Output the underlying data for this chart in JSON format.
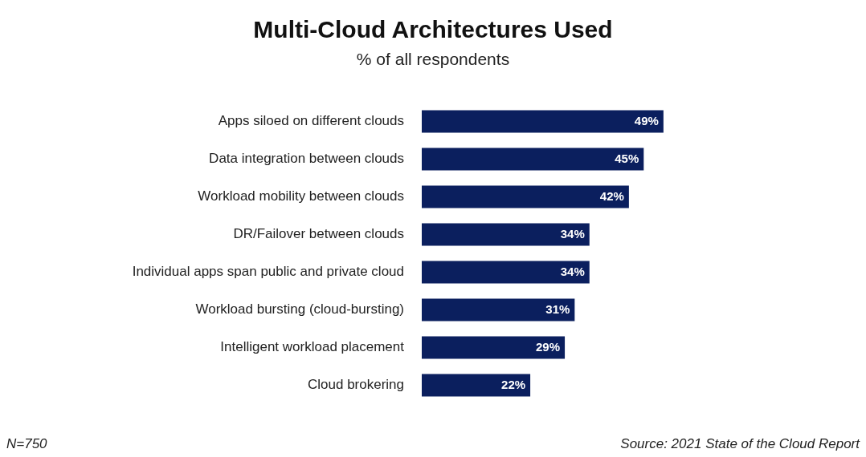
{
  "chart_data": {
    "type": "bar",
    "orientation": "horizontal",
    "title": "Multi-Cloud Architectures Used",
    "subtitle": "% of all respondents",
    "categories": [
      "Apps siloed on different clouds",
      "Data integration between clouds",
      "Workload mobility between clouds",
      "DR/Failover between clouds",
      "Individual apps span public and private cloud",
      "Workload bursting (cloud-bursting)",
      "Intelligent workload placement",
      "Cloud brokering"
    ],
    "values": [
      49,
      45,
      42,
      34,
      34,
      31,
      29,
      22
    ],
    "value_labels": [
      "49%",
      "45%",
      "42%",
      "34%",
      "34%",
      "31%",
      "29%",
      "22%"
    ],
    "color": "#0b1f5e",
    "annotations": [
      "N=750",
      "Source: 2021 State of the Cloud Report"
    ],
    "legend": false
  }
}
